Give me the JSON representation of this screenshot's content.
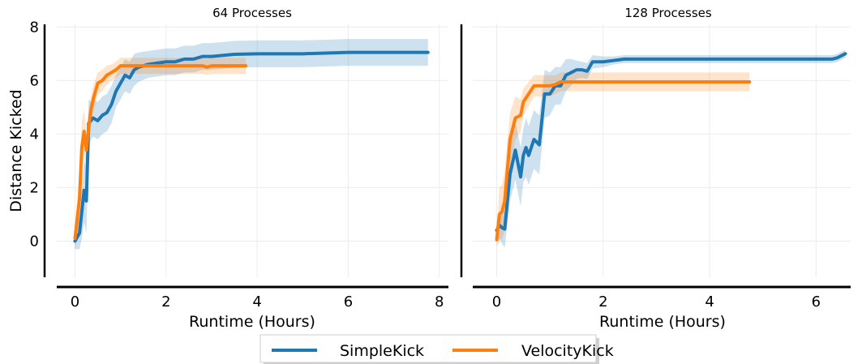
{
  "chart_data": [
    {
      "type": "line",
      "title": "64 Processes",
      "xlabel": "Runtime (Hours)",
      "ylabel": "Distance Kicked",
      "xlim": [
        -0.4,
        8.2
      ],
      "ylim": [
        -1.35,
        8.1
      ],
      "xticks": [
        0,
        2,
        4,
        6,
        8
      ],
      "yticks": [
        0,
        2,
        4,
        6,
        8
      ],
      "grid": true,
      "series": [
        {
          "name": "SimpleKick",
          "color": "#1f77b4",
          "x": [
            0.0,
            0.1,
            0.15,
            0.2,
            0.25,
            0.3,
            0.35,
            0.4,
            0.5,
            0.6,
            0.7,
            0.8,
            0.9,
            1.0,
            1.1,
            1.2,
            1.3,
            1.4,
            1.6,
            1.8,
            2.0,
            2.2,
            2.4,
            2.6,
            2.8,
            3.0,
            3.5,
            4.0,
            5.0,
            6.0,
            7.0,
            7.75
          ],
          "y": [
            0.0,
            0.3,
            1.1,
            1.9,
            1.5,
            4.4,
            4.5,
            4.6,
            4.5,
            4.7,
            4.8,
            5.1,
            5.6,
            5.9,
            6.2,
            6.1,
            6.4,
            6.5,
            6.6,
            6.65,
            6.7,
            6.7,
            6.8,
            6.8,
            6.9,
            6.9,
            6.98,
            7.0,
            7.0,
            7.05,
            7.05,
            7.05
          ],
          "band": [
            0.3,
            0.6,
            1.0,
            1.2,
            1.2,
            0.9,
            0.7,
            0.7,
            0.7,
            0.7,
            0.7,
            0.7,
            0.6,
            0.6,
            0.6,
            0.6,
            0.6,
            0.55,
            0.5,
            0.5,
            0.5,
            0.5,
            0.5,
            0.5,
            0.5,
            0.5,
            0.5,
            0.5,
            0.5,
            0.5,
            0.5,
            0.5
          ]
        },
        {
          "name": "VelocityKick",
          "color": "#ff7f0e",
          "x": [
            0.0,
            0.1,
            0.15,
            0.2,
            0.25,
            0.3,
            0.35,
            0.4,
            0.5,
            0.6,
            0.7,
            0.8,
            0.9,
            1.0,
            1.2,
            1.5,
            2.0,
            2.5,
            2.8,
            2.9,
            3.0,
            3.5,
            3.75
          ],
          "y": [
            0.1,
            1.6,
            3.5,
            4.1,
            3.4,
            4.2,
            4.9,
            5.3,
            5.9,
            6.0,
            6.2,
            6.3,
            6.4,
            6.55,
            6.55,
            6.55,
            6.55,
            6.55,
            6.55,
            6.5,
            6.55,
            6.55,
            6.55
          ],
          "band": [
            0.4,
            1.0,
            1.0,
            0.8,
            0.7,
            0.6,
            0.5,
            0.5,
            0.4,
            0.4,
            0.35,
            0.3,
            0.3,
            0.3,
            0.3,
            0.3,
            0.3,
            0.3,
            0.3,
            0.3,
            0.3,
            0.3,
            0.3
          ]
        }
      ]
    },
    {
      "type": "line",
      "title": "128 Processes",
      "xlabel": "Runtime (Hours)",
      "ylabel": "",
      "xlim": [
        -0.45,
        6.65
      ],
      "ylim": [
        -1.35,
        8.1
      ],
      "xticks": [
        0,
        2,
        4,
        6
      ],
      "yticks": [],
      "grid": true,
      "series": [
        {
          "name": "SimpleKick",
          "color": "#1f77b4",
          "x": [
            0.0,
            0.05,
            0.1,
            0.15,
            0.25,
            0.35,
            0.45,
            0.5,
            0.55,
            0.6,
            0.7,
            0.8,
            0.9,
            1.0,
            1.1,
            1.2,
            1.3,
            1.4,
            1.5,
            1.6,
            1.7,
            1.8,
            2.0,
            2.2,
            2.4,
            3.0,
            4.0,
            5.0,
            6.0,
            6.3,
            6.4,
            6.55
          ],
          "y": [
            0.4,
            0.6,
            0.5,
            0.45,
            2.5,
            3.4,
            2.4,
            3.2,
            3.5,
            3.2,
            3.8,
            3.6,
            5.5,
            5.5,
            5.8,
            5.8,
            6.2,
            6.3,
            6.4,
            6.4,
            6.35,
            6.7,
            6.7,
            6.75,
            6.8,
            6.8,
            6.8,
            6.8,
            6.8,
            6.8,
            6.85,
            7.0
          ],
          "band": [
            0.3,
            0.5,
            0.6,
            0.7,
            1.0,
            1.1,
            1.1,
            1.0,
            1.1,
            1.1,
            1.1,
            1.1,
            0.9,
            0.8,
            0.7,
            0.7,
            0.6,
            0.5,
            0.35,
            0.3,
            0.3,
            0.25,
            0.2,
            0.15,
            0.15,
            0.15,
            0.15,
            0.15,
            0.15,
            0.15,
            0.15,
            0.15
          ]
        },
        {
          "name": "VelocityKick",
          "color": "#ff7f0e",
          "x": [
            0.0,
            0.05,
            0.1,
            0.15,
            0.25,
            0.35,
            0.45,
            0.5,
            0.6,
            0.7,
            0.8,
            0.9,
            1.0,
            1.1,
            1.2,
            1.5,
            2.0,
            3.0,
            4.0,
            4.75
          ],
          "y": [
            0.05,
            1.0,
            1.1,
            1.5,
            3.8,
            4.6,
            4.7,
            5.2,
            5.5,
            5.8,
            5.8,
            5.8,
            5.8,
            5.85,
            5.95,
            5.95,
            5.95,
            5.95,
            5.95,
            5.95
          ],
          "band": [
            0.3,
            1.0,
            1.0,
            1.1,
            1.0,
            0.8,
            0.6,
            0.5,
            0.45,
            0.4,
            0.4,
            0.4,
            0.4,
            0.35,
            0.35,
            0.35,
            0.35,
            0.35,
            0.35,
            0.35
          ]
        }
      ]
    }
  ],
  "legend": {
    "position": "bottom-center",
    "entries": [
      {
        "label": "SimpleKick",
        "color": "#1f77b4"
      },
      {
        "label": "VelocityKick",
        "color": "#ff7f0e"
      }
    ]
  }
}
